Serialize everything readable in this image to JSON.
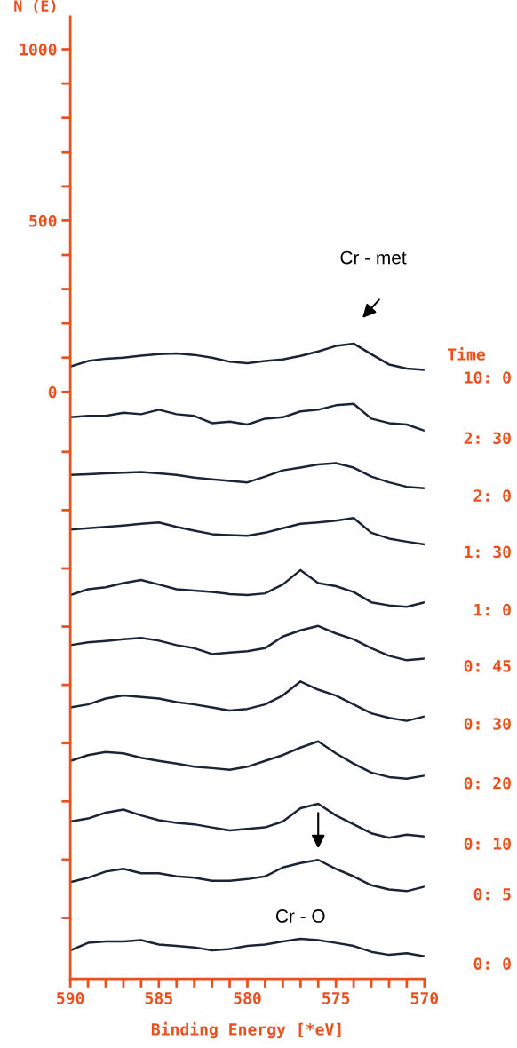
{
  "chart_data": {
    "type": "line",
    "xlabel": "Binding Energy [*eV]",
    "ylabel": "N (E)",
    "legend_title": "Time",
    "x": [
      590,
      589,
      588,
      587,
      586,
      585,
      584,
      583,
      582,
      581,
      580,
      579,
      578,
      577,
      576,
      575,
      574,
      573,
      572,
      571,
      570
    ],
    "xlim": [
      590,
      570
    ],
    "xticks": [
      590,
      {
        "value": 589,
        "label": null
      },
      {
        "value": 588,
        "label": null
      },
      {
        "value": 587,
        "label": null
      },
      {
        "value": 586,
        "label": null
      },
      585,
      {
        "value": 584,
        "label": null
      },
      {
        "value": 583,
        "label": null
      },
      {
        "value": 582,
        "label": null
      },
      {
        "value": 581,
        "label": null
      },
      580,
      {
        "value": 579,
        "label": null
      },
      {
        "value": 578,
        "label": null
      },
      {
        "value": 577,
        "label": null
      },
      {
        "value": 576,
        "label": null
      },
      575,
      {
        "value": 574,
        "label": null
      },
      {
        "value": 573,
        "label": null
      },
      {
        "value": 572,
        "label": null
      },
      {
        "value": 571,
        "label": null
      },
      570
    ],
    "ylim": [
      -1713,
      1095
    ],
    "yticks": [
      {
        "value": -1535,
        "label": null
      },
      {
        "value": -1365,
        "label": null
      },
      {
        "value": -1195,
        "label": null
      },
      {
        "value": -1025,
        "label": null
      },
      {
        "value": -855,
        "label": null
      },
      {
        "value": -685,
        "label": null
      },
      {
        "value": -515,
        "label": null
      },
      {
        "value": -345,
        "label": null
      },
      {
        "value": -175,
        "label": null
      },
      0,
      {
        "value": 100,
        "label": null
      },
      {
        "value": 200,
        "label": null
      },
      {
        "value": 300,
        "label": null
      },
      {
        "value": 400,
        "label": null
      },
      500,
      {
        "value": 600,
        "label": null
      },
      {
        "value": 700,
        "label": null
      },
      {
        "value": 800,
        "label": null
      },
      {
        "value": 900,
        "label": null
      },
      1000
    ],
    "series": [
      {
        "name": "10: 0",
        "color": "#1a2438",
        "values": [
          74,
          90,
          97,
          100,
          106,
          110,
          112,
          108,
          100,
          88,
          84,
          90,
          95,
          105,
          118,
          134,
          141,
          110,
          80,
          68,
          64
        ]
      },
      {
        "name": "2: 30",
        "color": "#1a2438",
        "values": [
          -74,
          -70,
          -70,
          -61,
          -65,
          -52,
          -65,
          -70,
          -91,
          -87,
          -95,
          -78,
          -74,
          -57,
          -52,
          -39,
          -35,
          -78,
          -91,
          -95,
          -113
        ]
      },
      {
        "name": "2: 0",
        "color": "#1a2438",
        "values": [
          -242,
          -240,
          -238,
          -236,
          -234,
          -238,
          -242,
          -250,
          -255,
          -260,
          -264,
          -247,
          -229,
          -221,
          -212,
          -208,
          -221,
          -247,
          -264,
          -277,
          -281
        ]
      },
      {
        "name": "1: 30",
        "color": "#1a2438",
        "values": [
          -402,
          -398,
          -394,
          -390,
          -385,
          -381,
          -394,
          -405,
          -415,
          -418,
          -420,
          -411,
          -398,
          -385,
          -381,
          -376,
          -368,
          -411,
          -428,
          -437,
          -445
        ]
      },
      {
        "name": "1: 0",
        "color": "#1a2438",
        "values": [
          -593,
          -576,
          -570,
          -558,
          -549,
          -562,
          -576,
          -580,
          -584,
          -590,
          -593,
          -588,
          -562,
          -520,
          -558,
          -567,
          -584,
          -614,
          -623,
          -627,
          -614
        ]
      },
      {
        "name": "0: 45",
        "color": "#1a2438",
        "values": [
          -739,
          -731,
          -727,
          -722,
          -718,
          -726,
          -739,
          -748,
          -765,
          -761,
          -757,
          -748,
          -714,
          -696,
          -683,
          -705,
          -722,
          -748,
          -770,
          -783,
          -778
        ]
      },
      {
        "name": "0: 30",
        "color": "#1a2438",
        "values": [
          -921,
          -912,
          -895,
          -886,
          -890,
          -895,
          -905,
          -912,
          -921,
          -930,
          -925,
          -912,
          -886,
          -845,
          -869,
          -886,
          -912,
          -938,
          -951,
          -960,
          -947
        ]
      },
      {
        "name": "0: 20",
        "color": "#1a2438",
        "values": [
          -1077,
          -1060,
          -1051,
          -1055,
          -1068,
          -1077,
          -1085,
          -1094,
          -1098,
          -1103,
          -1094,
          -1077,
          -1060,
          -1038,
          -1020,
          -1055,
          -1085,
          -1111,
          -1124,
          -1129,
          -1120
        ]
      },
      {
        "name": "0: 10",
        "color": "#1a2438",
        "values": [
          -1254,
          -1245,
          -1228,
          -1219,
          -1236,
          -1250,
          -1258,
          -1262,
          -1271,
          -1280,
          -1275,
          -1271,
          -1254,
          -1215,
          -1202,
          -1236,
          -1262,
          -1288,
          -1301,
          -1292,
          -1297
        ]
      },
      {
        "name": "0: 5",
        "color": "#1a2438",
        "values": [
          -1431,
          -1418,
          -1400,
          -1392,
          -1405,
          -1405,
          -1414,
          -1418,
          -1427,
          -1427,
          -1422,
          -1414,
          -1388,
          -1375,
          -1366,
          -1392,
          -1414,
          -1440,
          -1452,
          -1457,
          -1444
        ]
      },
      {
        "name": "0: 0",
        "color": "#1a2438",
        "values": [
          -1630,
          -1608,
          -1604,
          -1604,
          -1600,
          -1613,
          -1617,
          -1621,
          -1630,
          -1626,
          -1617,
          -1613,
          -1604,
          -1596,
          -1600,
          -1608,
          -1617,
          -1634,
          -1643,
          -1638,
          -1647
        ]
      }
    ],
    "annotations": [
      "Cr - met",
      {
        "text": "Cr - O",
        "x": 576,
        "y": -1366
      }
    ]
  }
}
